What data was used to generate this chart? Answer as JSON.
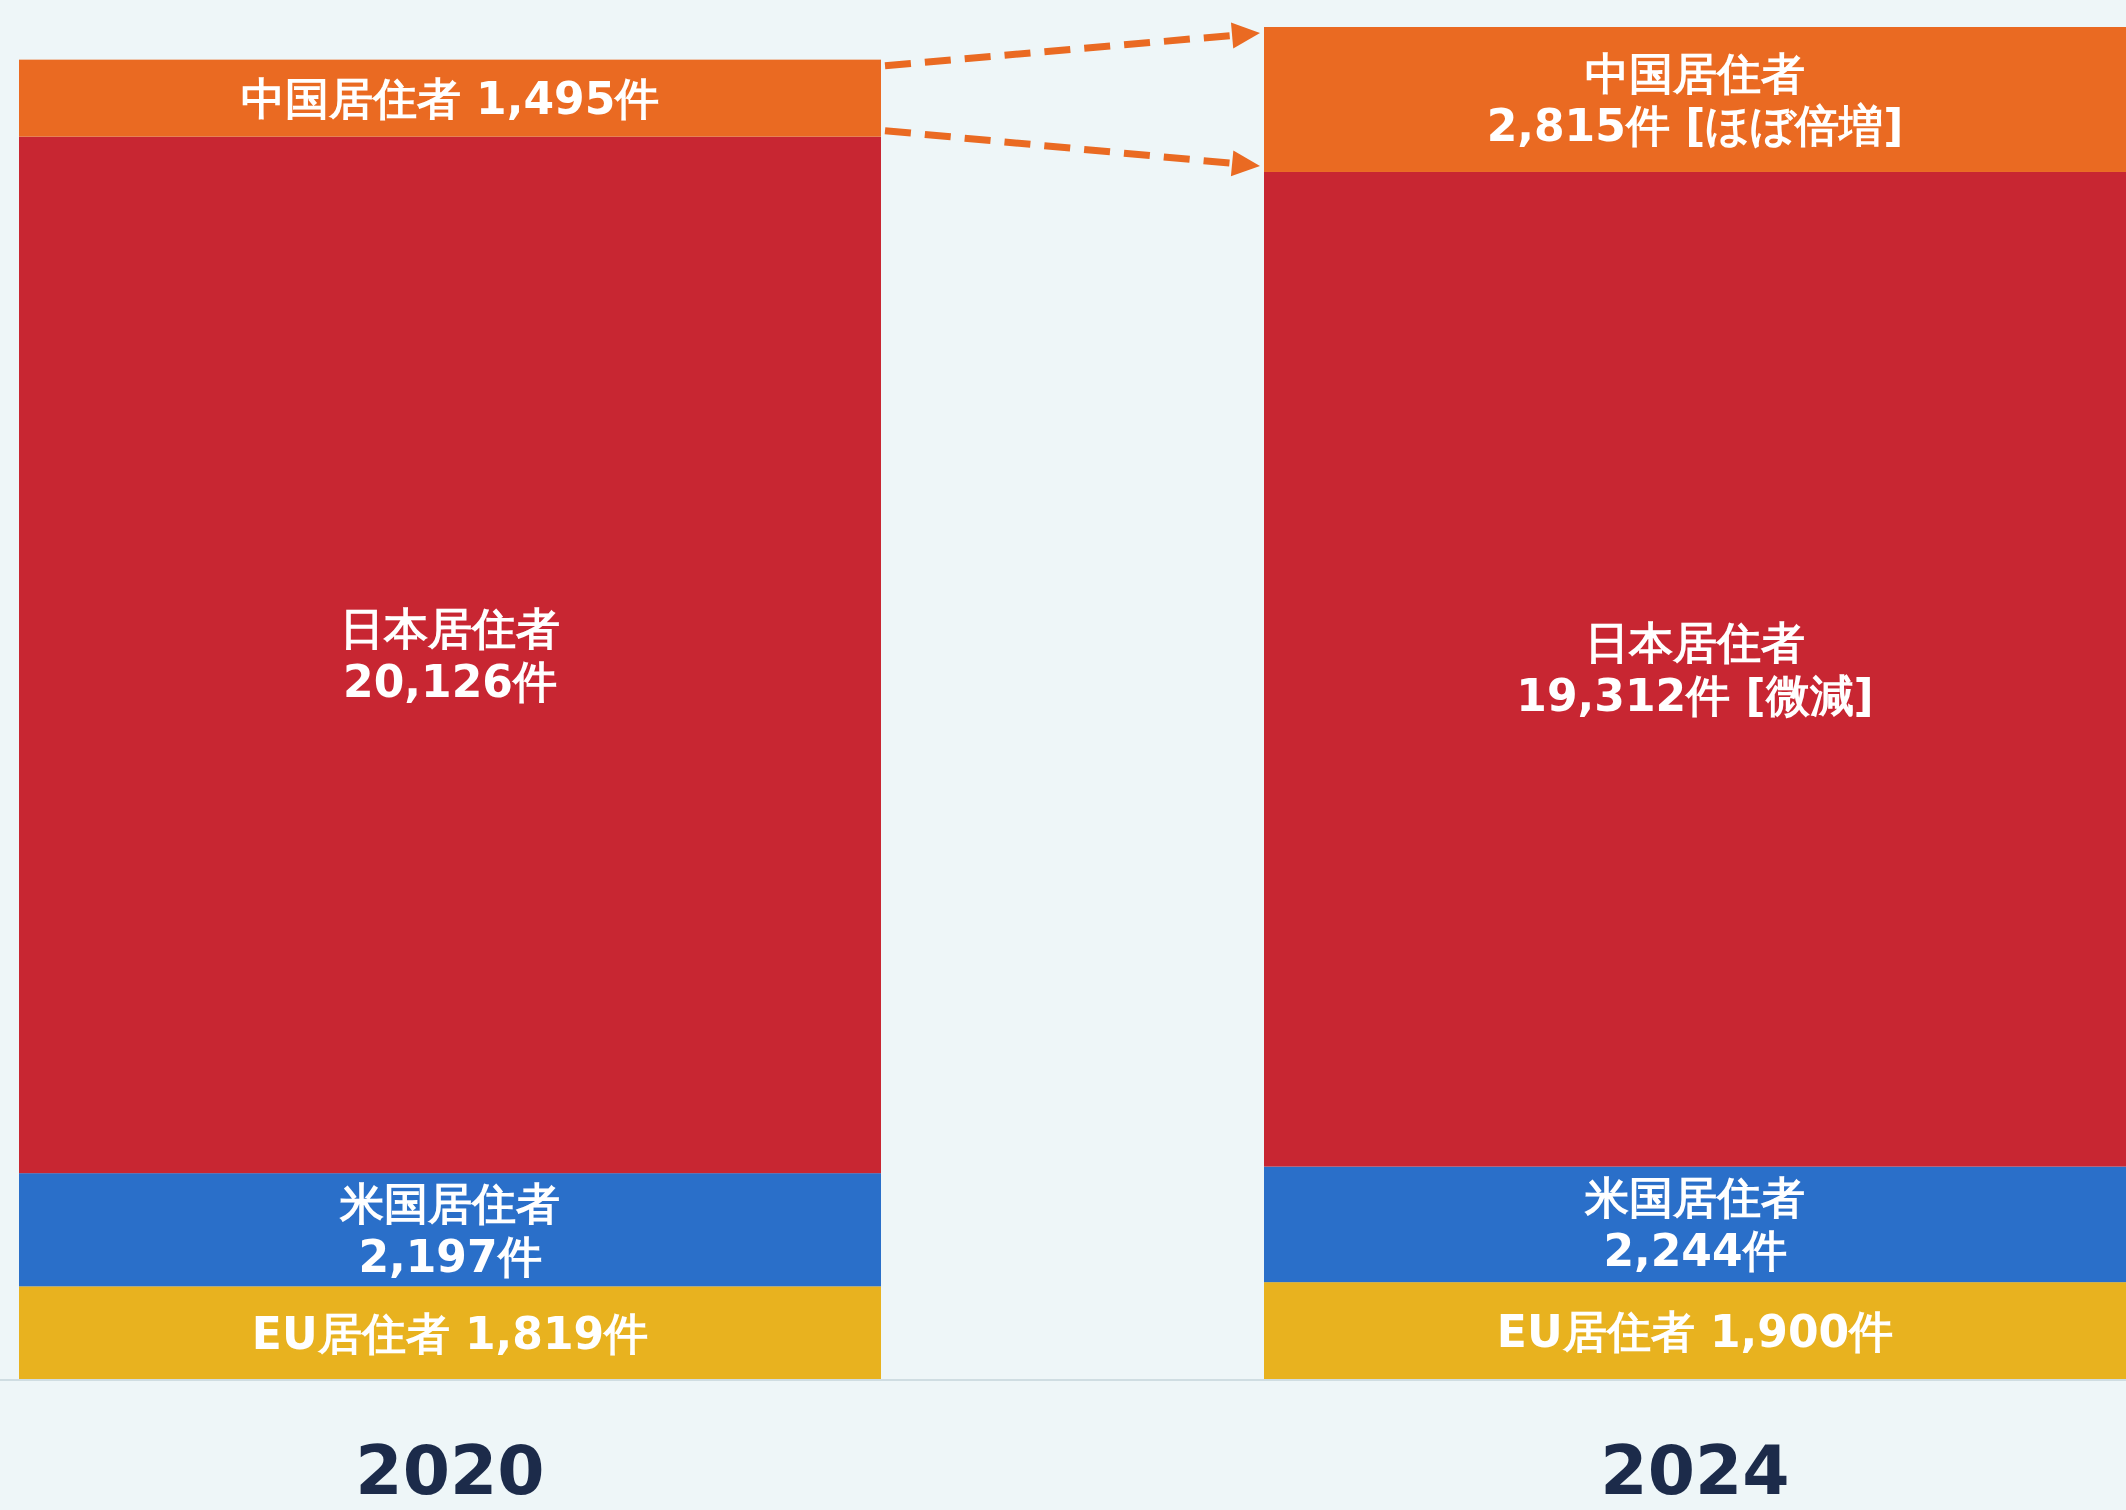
{
  "chart_data": {
    "type": "bar",
    "stacked": true,
    "categories": [
      "2020",
      "2024"
    ],
    "series": [
      {
        "name": "EU居住者",
        "color": "#e8b21f",
        "values": [
          1819,
          1900
        ],
        "value_labels": [
          "1,819件",
          "1,900件"
        ]
      },
      {
        "name": "米国居住者",
        "color": "#2a6fc9",
        "values": [
          2197,
          2244
        ],
        "value_labels": [
          "2,197件",
          "2,244件"
        ]
      },
      {
        "name": "日本居住者",
        "color": "#c82632",
        "values": [
          20126,
          19312
        ],
        "value_labels": [
          "20,126件",
          "19,312件 [微減]"
        ]
      },
      {
        "name": "中国居住者",
        "color": "#ea6a22",
        "values": [
          1495,
          2815
        ],
        "value_labels": [
          "1,495件",
          "2,815件 [ほぼ倍増]"
        ]
      }
    ]
  }
}
